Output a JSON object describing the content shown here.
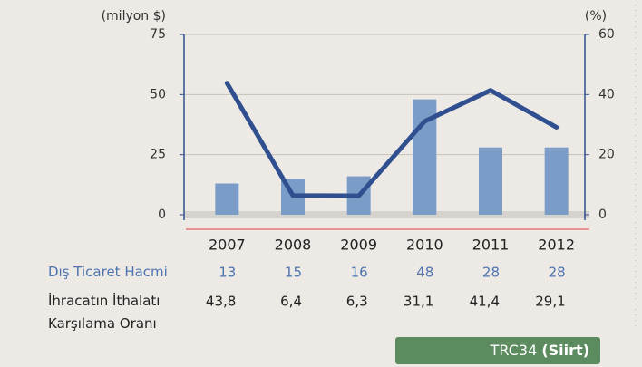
{
  "chart_data": {
    "type": "bar",
    "y_label": "(milyon $)",
    "y2_label": "(%)",
    "categories": [
      "2007",
      "2008",
      "2009",
      "2010",
      "2011",
      "2012"
    ],
    "series": [
      {
        "name": "Dış Ticaret Hacmi",
        "type": "bar",
        "color": "#7b9cc6",
        "values": [
          13,
          15,
          16,
          48,
          28,
          28
        ]
      },
      {
        "name": "İhracatın İthalatı Karşılama Oranı",
        "type": "line",
        "axis": "y2",
        "color": "#2f4f8f",
        "values": [
          43.8,
          6.4,
          6.3,
          31.1,
          41.4,
          29.1
        ],
        "value_labels": [
          "43,8",
          "6,4",
          "6,3",
          "31,1",
          "41,4",
          "29,1"
        ]
      }
    ],
    "ylim": [
      0,
      75
    ],
    "yticks": [
      0,
      25,
      50,
      75
    ],
    "y2lim": [
      0,
      60
    ],
    "y2ticks": [
      0,
      20,
      40,
      60
    ],
    "grid": true
  },
  "badge": {
    "code": "TRC34",
    "name": "(Siirt)"
  }
}
